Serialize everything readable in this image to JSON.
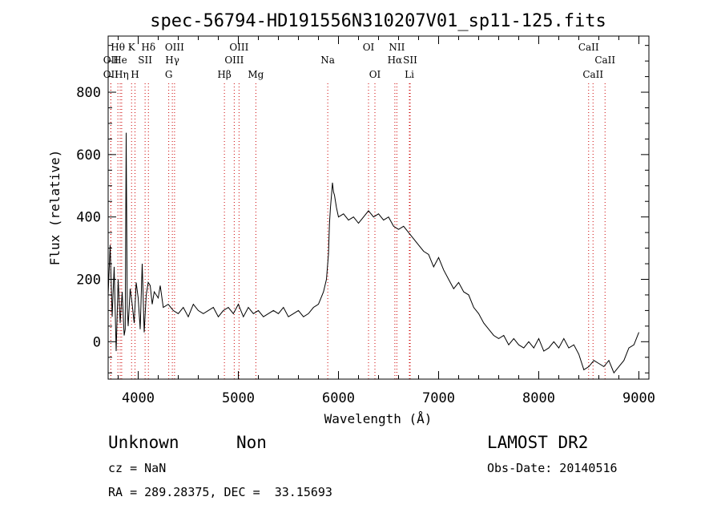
{
  "chart_data": {
    "type": "line",
    "title": "spec-56794-HD191556N310207V01_sp11-125.fits",
    "xlabel": "Wavelength (Å)",
    "ylabel": "Flux (relative)",
    "xlim": [
      3700,
      9100
    ],
    "ylim": [
      -120,
      980
    ],
    "xticks": [
      4000,
      5000,
      6000,
      7000,
      8000,
      9000
    ],
    "yticks": [
      0,
      200,
      400,
      600,
      800
    ],
    "grid": false,
    "legend": "none",
    "line_color": "#000000",
    "marker_line_color": "#cc0000",
    "series": [
      {
        "x": [
          3700,
          3720,
          3740,
          3760,
          3780,
          3800,
          3820,
          3840,
          3860,
          3870,
          3880,
          3890,
          3900,
          3920,
          3940,
          3960,
          3980,
          4000,
          4020,
          4040,
          4060,
          4080,
          4100,
          4120,
          4140,
          4160,
          4180,
          4200,
          4220,
          4250,
          4300,
          4350,
          4400,
          4450,
          4500,
          4550,
          4600,
          4650,
          4700,
          4750,
          4800,
          4850,
          4900,
          4950,
          5000,
          5050,
          5100,
          5150,
          5200,
          5250,
          5300,
          5350,
          5400,
          5450,
          5500,
          5550,
          5600,
          5650,
          5700,
          5750,
          5800,
          5850,
          5880,
          5900,
          5910,
          5920,
          5930,
          5940,
          5950,
          5960,
          5980,
          6000,
          6050,
          6100,
          6150,
          6200,
          6250,
          6300,
          6350,
          6400,
          6450,
          6500,
          6550,
          6600,
          6650,
          6700,
          6750,
          6800,
          6850,
          6900,
          6950,
          7000,
          7050,
          7100,
          7150,
          7200,
          7250,
          7300,
          7350,
          7400,
          7450,
          7500,
          7550,
          7600,
          7650,
          7700,
          7750,
          7800,
          7850,
          7900,
          7950,
          8000,
          8050,
          8100,
          8150,
          8200,
          8250,
          8300,
          8350,
          8400,
          8450,
          8500,
          8550,
          8600,
          8650,
          8700,
          8750,
          8800,
          8850,
          8900,
          8950,
          9000
        ],
        "y": [
          150,
          310,
          80,
          240,
          -30,
          200,
          60,
          160,
          20,
          40,
          670,
          110,
          50,
          170,
          120,
          60,
          190,
          140,
          40,
          250,
          30,
          150,
          190,
          180,
          120,
          160,
          150,
          140,
          180,
          110,
          120,
          100,
          90,
          110,
          80,
          120,
          100,
          90,
          100,
          110,
          80,
          100,
          110,
          90,
          120,
          80,
          110,
          90,
          100,
          80,
          90,
          100,
          90,
          110,
          80,
          90,
          100,
          80,
          90,
          110,
          120,
          160,
          200,
          280,
          380,
          430,
          470,
          510,
          480,
          470,
          430,
          400,
          410,
          390,
          400,
          380,
          400,
          420,
          400,
          410,
          390,
          400,
          370,
          360,
          370,
          350,
          330,
          310,
          290,
          280,
          240,
          270,
          230,
          200,
          170,
          190,
          160,
          150,
          110,
          90,
          60,
          40,
          20,
          10,
          20,
          -10,
          10,
          -10,
          -20,
          0,
          -20,
          10,
          -30,
          -20,
          0,
          -20,
          10,
          -20,
          -10,
          -40,
          -90,
          -80,
          -60,
          -70,
          -80,
          -60,
          -100,
          -80,
          -60,
          -20,
          -10,
          30
        ]
      }
    ],
    "line_markers": [
      {
        "label": "Hθ",
        "x": 3797,
        "row": 1
      },
      {
        "label": "OII",
        "x": 3727,
        "row": 2
      },
      {
        "label": "OII",
        "x": 3727,
        "row": 3
      },
      {
        "label": "K",
        "x": 3934,
        "row": 1
      },
      {
        "label": "H",
        "x": 3968,
        "row": 3
      },
      {
        "label": "He",
        "x": 3820,
        "row": 2
      },
      {
        "label": "Hη",
        "x": 3835,
        "row": 3
      },
      {
        "label": "SII",
        "x": 4069,
        "row": 2
      },
      {
        "label": "Hδ",
        "x": 4102,
        "row": 1
      },
      {
        "label": "OIII",
        "x": 4363,
        "row": 1
      },
      {
        "label": "Hγ",
        "x": 4341,
        "row": 2
      },
      {
        "label": "G",
        "x": 4305,
        "row": 3
      },
      {
        "label": "Hβ",
        "x": 4861,
        "row": 3
      },
      {
        "label": "OIII",
        "x": 5007,
        "row": 1
      },
      {
        "label": "OIII",
        "x": 4959,
        "row": 2
      },
      {
        "label": "Mg",
        "x": 5175,
        "row": 3
      },
      {
        "label": "Na",
        "x": 5893,
        "row": 2
      },
      {
        "label": "OI",
        "x": 6300,
        "row": 1
      },
      {
        "label": "OI",
        "x": 6364,
        "row": 3
      },
      {
        "label": "NII",
        "x": 6583,
        "row": 1
      },
      {
        "label": "Hα",
        "x": 6563,
        "row": 2
      },
      {
        "label": "SII",
        "x": 6716,
        "row": 2
      },
      {
        "label": "Li",
        "x": 6708,
        "row": 3
      },
      {
        "label": "CaII",
        "x": 8498,
        "row": 1
      },
      {
        "label": "CaII",
        "x": 8662,
        "row": 2
      },
      {
        "label": "CaII",
        "x": 8542,
        "row": 3
      }
    ]
  },
  "info": {
    "class": "Unknown",
    "subclass": "Non",
    "cz": "cz = NaN",
    "coords": "RA = 289.28375, DEC =  33.15693",
    "survey": "LAMOST DR2",
    "obsdate": "Obs-Date: 20140516"
  }
}
